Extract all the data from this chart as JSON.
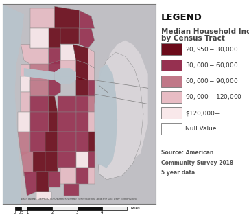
{
  "title": "LEGEND",
  "map_title_line1": "Median Household Income",
  "map_title_line2": "by Census Tract",
  "legend_items": [
    {
      "label": "$20,950- $30,000",
      "color": "#6B0B1A"
    },
    {
      "label": "$30,000 - $60,000",
      "color": "#963050"
    },
    {
      "label": "$60,000 - $90,000",
      "color": "#C07888"
    },
    {
      "label": "$90,000 - $120,000",
      "color": "#E8BCC4"
    },
    {
      "label": "$120,000+",
      "color": "#F9E8EA"
    },
    {
      "label": "Null Value",
      "color": "#FFFFFF"
    }
  ],
  "source_text_line1": "Source: American",
  "source_text_line2": "Community Survey 2018",
  "source_text_line3": "5 year data",
  "map_bg": "#C0BFC4",
  "land_bg": "#D8D4D8",
  "legend_bg": "#FFFFFF",
  "fig_bg": "#FFFFFF",
  "map_border_color": "#777777",
  "patch_outline": "#888888",
  "water_color": "#B8C4CC",
  "legend_title_fontsize": 7.5,
  "legend_label_fontsize": 6.5,
  "source_fontsize": 5.5,
  "main_title_fontsize": 9.5
}
